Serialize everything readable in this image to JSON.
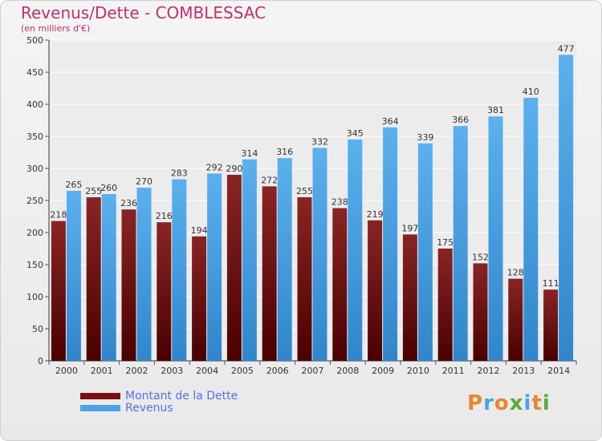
{
  "title": "Revenus/Dette - COMBLESSAC",
  "subtitle": "(en milliers d'€)",
  "logo_text": "Proxiti",
  "colors": {
    "debt": "#7a1010",
    "revenue": "#4aa3e6",
    "title": "#c0306a",
    "legend_text": "#5a6fe0"
  },
  "legend": [
    {
      "label": "Montant de la Dette",
      "color": "#7a1010"
    },
    {
      "label": "Revenus",
      "color": "#4aa3e6"
    }
  ],
  "chart_data": {
    "type": "bar",
    "title": "Revenus/Dette - COMBLESSAC",
    "subtitle": "(en milliers d'€)",
    "categories": [
      "2000",
      "2001",
      "2002",
      "2003",
      "2004",
      "2005",
      "2006",
      "2007",
      "2008",
      "2009",
      "2010",
      "2011",
      "2012",
      "2013",
      "2014"
    ],
    "series": [
      {
        "name": "Montant de la Dette",
        "values": [
          218,
          255,
          236,
          216,
          194,
          290,
          272,
          255,
          238,
          219,
          197,
          175,
          152,
          128,
          111
        ]
      },
      {
        "name": "Revenus",
        "values": [
          265,
          260,
          270,
          283,
          292,
          314,
          316,
          332,
          345,
          364,
          339,
          366,
          381,
          410,
          477
        ]
      }
    ],
    "ylim": [
      0,
      500
    ],
    "yticks": [
      0,
      50,
      100,
      150,
      200,
      250,
      300,
      350,
      400,
      450,
      500
    ],
    "grid": true,
    "legend_position": "bottom-left"
  }
}
